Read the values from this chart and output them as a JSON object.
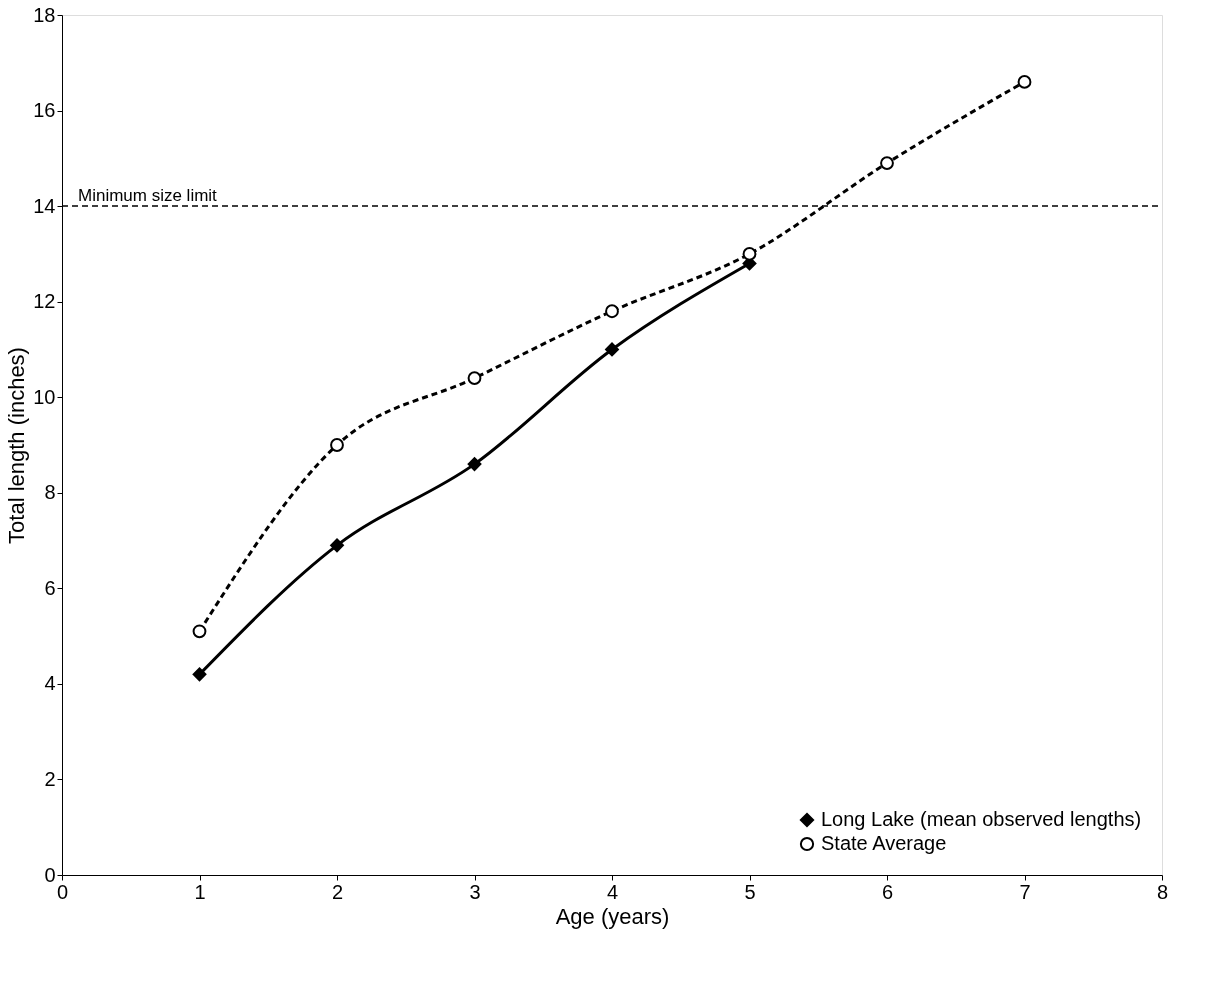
{
  "chart_data": {
    "type": "line",
    "xlabel": "Age (years)",
    "ylabel": "Total length (inches)",
    "x": [
      1,
      2,
      3,
      4,
      5,
      6,
      7
    ],
    "series": [
      {
        "name": "Long Lake (mean observed lengths)",
        "color": "#000000",
        "values": [
          4.2,
          6.9,
          8.6,
          11.0,
          12.8,
          null,
          null
        ],
        "marker": "diamond",
        "line_style": "solid"
      },
      {
        "name": "State Average",
        "color": "#000000",
        "values": [
          5.1,
          9.0,
          10.4,
          11.8,
          13.0,
          14.9,
          16.6
        ],
        "marker": "circle",
        "line_style": "dashed"
      }
    ],
    "xlim": [
      0,
      8
    ],
    "xticks": [
      0,
      1,
      2,
      3,
      4,
      5,
      6,
      7,
      8
    ],
    "ylim": [
      0,
      18
    ],
    "yticks": [
      0,
      2,
      4,
      6,
      8,
      10,
      12,
      14,
      16,
      18
    ],
    "ref_lines": [
      {
        "axis": "y",
        "value": 14,
        "label": "Minimum size limit",
        "color": "#000000",
        "line_style": "dashed"
      }
    ],
    "grid": false,
    "legend": "bottom right"
  }
}
